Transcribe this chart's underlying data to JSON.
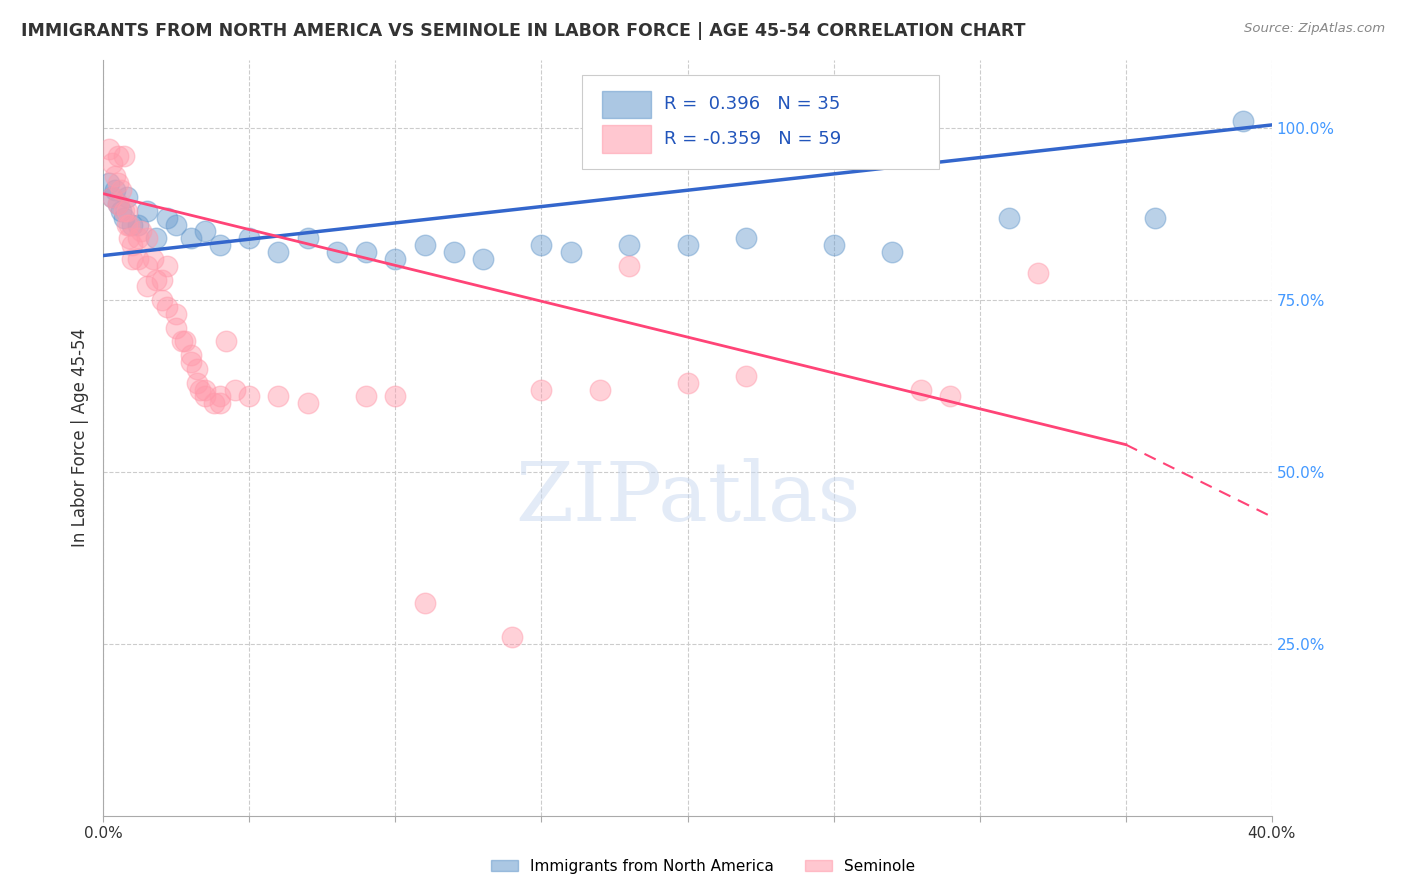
{
  "title": "IMMIGRANTS FROM NORTH AMERICA VS SEMINOLE IN LABOR FORCE | AGE 45-54 CORRELATION CHART",
  "source": "Source: ZipAtlas.com",
  "ylabel": "In Labor Force | Age 45-54",
  "xlim": [
    0.0,
    0.4
  ],
  "ylim": [
    0.0,
    1.1
  ],
  "xtick_positions": [
    0.0,
    0.05,
    0.1,
    0.15,
    0.2,
    0.25,
    0.3,
    0.35,
    0.4
  ],
  "xtick_labels": [
    "0.0%",
    "",
    "",
    "",
    "",
    "",
    "",
    "",
    "40.0%"
  ],
  "ytick_positions_right": [
    0.25,
    0.5,
    0.75,
    1.0
  ],
  "ytick_labels_right": [
    "25.0%",
    "50.0%",
    "75.0%",
    "100.0%"
  ],
  "grid_color": "#cccccc",
  "blue_R": 0.396,
  "blue_N": 35,
  "pink_R": -0.359,
  "pink_N": 59,
  "blue_color": "#6699cc",
  "pink_color": "#ff99aa",
  "blue_scatter": [
    [
      0.002,
      0.92
    ],
    [
      0.003,
      0.9
    ],
    [
      0.004,
      0.91
    ],
    [
      0.005,
      0.89
    ],
    [
      0.006,
      0.88
    ],
    [
      0.007,
      0.87
    ],
    [
      0.008,
      0.9
    ],
    [
      0.01,
      0.86
    ],
    [
      0.012,
      0.86
    ],
    [
      0.015,
      0.88
    ],
    [
      0.018,
      0.84
    ],
    [
      0.022,
      0.87
    ],
    [
      0.025,
      0.86
    ],
    [
      0.03,
      0.84
    ],
    [
      0.035,
      0.85
    ],
    [
      0.04,
      0.83
    ],
    [
      0.05,
      0.84
    ],
    [
      0.06,
      0.82
    ],
    [
      0.07,
      0.84
    ],
    [
      0.08,
      0.82
    ],
    [
      0.09,
      0.82
    ],
    [
      0.1,
      0.81
    ],
    [
      0.11,
      0.83
    ],
    [
      0.12,
      0.82
    ],
    [
      0.13,
      0.81
    ],
    [
      0.15,
      0.83
    ],
    [
      0.16,
      0.82
    ],
    [
      0.18,
      0.83
    ],
    [
      0.2,
      0.83
    ],
    [
      0.22,
      0.84
    ],
    [
      0.25,
      0.83
    ],
    [
      0.27,
      0.82
    ],
    [
      0.31,
      0.87
    ],
    [
      0.36,
      0.87
    ],
    [
      0.39,
      1.01
    ]
  ],
  "pink_scatter": [
    [
      0.002,
      0.97
    ],
    [
      0.003,
      0.95
    ],
    [
      0.003,
      0.9
    ],
    [
      0.004,
      0.93
    ],
    [
      0.005,
      0.96
    ],
    [
      0.005,
      0.92
    ],
    [
      0.005,
      0.89
    ],
    [
      0.006,
      0.91
    ],
    [
      0.007,
      0.96
    ],
    [
      0.007,
      0.88
    ],
    [
      0.008,
      0.88
    ],
    [
      0.008,
      0.86
    ],
    [
      0.009,
      0.86
    ],
    [
      0.009,
      0.84
    ],
    [
      0.01,
      0.83
    ],
    [
      0.01,
      0.81
    ],
    [
      0.012,
      0.84
    ],
    [
      0.012,
      0.81
    ],
    [
      0.013,
      0.85
    ],
    [
      0.015,
      0.84
    ],
    [
      0.015,
      0.8
    ],
    [
      0.015,
      0.77
    ],
    [
      0.017,
      0.81
    ],
    [
      0.018,
      0.78
    ],
    [
      0.02,
      0.78
    ],
    [
      0.02,
      0.75
    ],
    [
      0.022,
      0.8
    ],
    [
      0.022,
      0.74
    ],
    [
      0.025,
      0.73
    ],
    [
      0.025,
      0.71
    ],
    [
      0.027,
      0.69
    ],
    [
      0.028,
      0.69
    ],
    [
      0.03,
      0.67
    ],
    [
      0.03,
      0.66
    ],
    [
      0.032,
      0.65
    ],
    [
      0.032,
      0.63
    ],
    [
      0.033,
      0.62
    ],
    [
      0.035,
      0.62
    ],
    [
      0.035,
      0.61
    ],
    [
      0.038,
      0.6
    ],
    [
      0.04,
      0.61
    ],
    [
      0.04,
      0.6
    ],
    [
      0.042,
      0.69
    ],
    [
      0.045,
      0.62
    ],
    [
      0.05,
      0.61
    ],
    [
      0.06,
      0.61
    ],
    [
      0.07,
      0.6
    ],
    [
      0.09,
      0.61
    ],
    [
      0.1,
      0.61
    ],
    [
      0.11,
      0.31
    ],
    [
      0.14,
      0.26
    ],
    [
      0.15,
      0.62
    ],
    [
      0.17,
      0.62
    ],
    [
      0.18,
      0.8
    ],
    [
      0.2,
      0.63
    ],
    [
      0.22,
      0.64
    ],
    [
      0.28,
      0.62
    ],
    [
      0.29,
      0.61
    ],
    [
      0.32,
      0.79
    ]
  ],
  "blue_line": [
    [
      0.0,
      0.815
    ],
    [
      0.4,
      1.005
    ]
  ],
  "pink_line_solid": [
    [
      0.0,
      0.905
    ],
    [
      0.35,
      0.54
    ]
  ],
  "pink_line_dashed": [
    [
      0.35,
      0.54
    ],
    [
      0.4,
      0.435
    ]
  ],
  "watermark_text": "ZIPatlas",
  "legend_blue_label": "Immigrants from North America",
  "legend_pink_label": "Seminole",
  "background_color": "#ffffff",
  "title_color": "#333333",
  "source_color": "#888888",
  "right_axis_color": "#4499ff"
}
